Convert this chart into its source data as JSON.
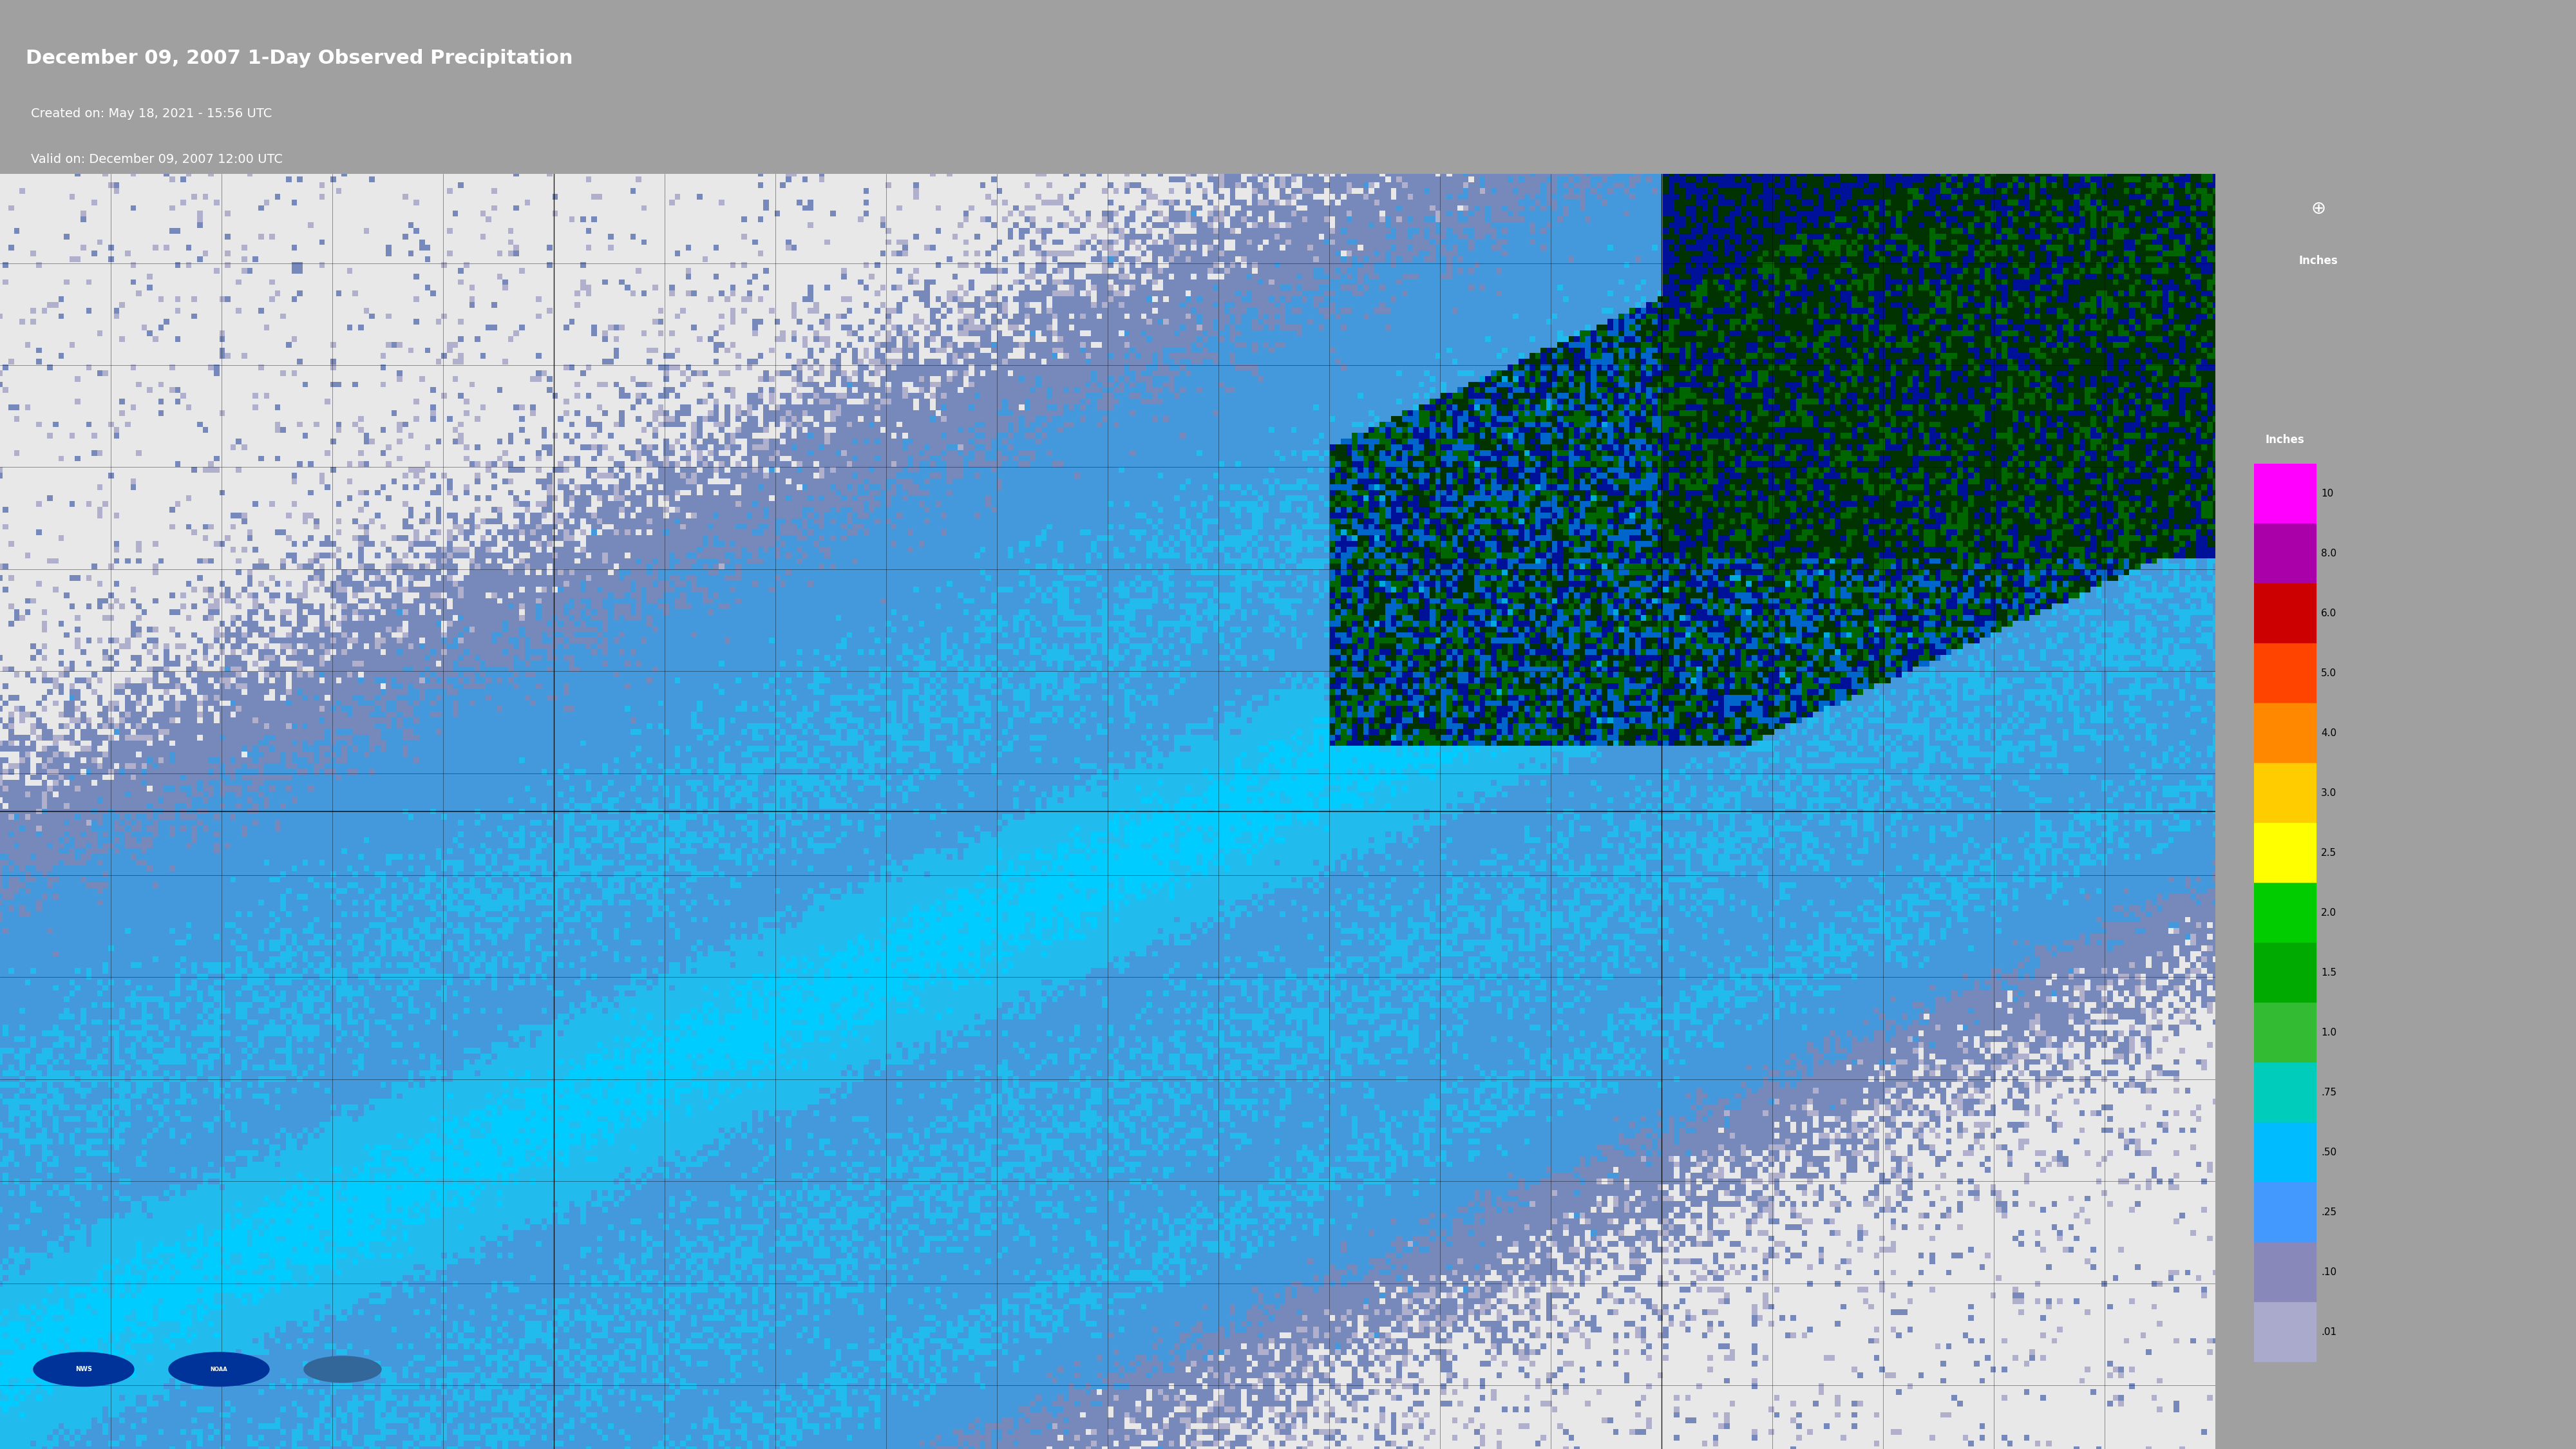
{
  "title_line1": "December 09, 2007 1-Day Observed Precipitation",
  "title_line2": "Created on: May 18, 2021 - 15:56 UTC",
  "title_line3": "Valid on: December 09, 2007 12:00 UTC",
  "header_bg": "#1a3a9e",
  "map_bg": "#d0d0d0",
  "sidebar_bg": "#a0a0a0",
  "legend_labels": [
    "10",
    "8.0",
    "6.0",
    "5.0",
    "4.0",
    "3.0",
    "2.5",
    "2.0",
    "1.5",
    "1.0",
    ".75",
    ".50",
    ".25",
    ".10",
    ".01"
  ],
  "legend_colors": [
    "#ff00ff",
    "#cc00cc",
    "#cc0000",
    "#ff3300",
    "#ff6600",
    "#ff9900",
    "#ffcc00",
    "#ffff00",
    "#00cc00",
    "#33cc33",
    "#66cc66",
    "#00ffcc",
    "#00ccff",
    "#6699ff",
    "#9999cc"
  ],
  "units_label": "Inches",
  "title_fontsize": 22,
  "subtitle_fontsize": 14
}
